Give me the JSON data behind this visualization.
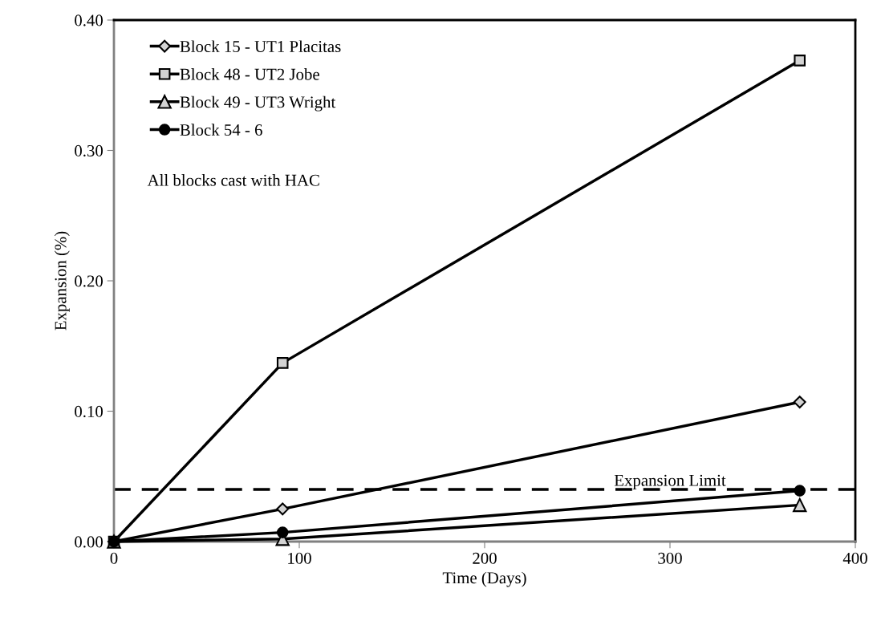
{
  "chart_data": {
    "type": "line",
    "xlabel": "Time (Days)",
    "ylabel": "Expansion (%)",
    "x": [
      0,
      91,
      370
    ],
    "series": [
      {
        "name": "Block 15 - UT1 Placitas",
        "color": "#000000",
        "marker": "diamond",
        "values": [
          0,
          0.025,
          0.107
        ]
      },
      {
        "name": "Block 48 - UT2 Jobe",
        "color": "#000000",
        "marker": "square",
        "values": [
          0,
          0.137,
          0.369
        ]
      },
      {
        "name": "Block 49 - UT3 Wright",
        "color": "#000000",
        "marker": "triangle",
        "values": [
          0,
          0.002,
          0.028
        ]
      },
      {
        "name": "Block 54 - 6",
        "color": "#000000",
        "marker": "circle",
        "values": [
          0,
          0.007,
          0.039
        ]
      }
    ],
    "xlim": [
      0,
      400
    ],
    "xticks": [
      0,
      100,
      200,
      300,
      400
    ],
    "ylim": [
      0,
      0.4
    ],
    "yticks": [
      {
        "value": 0,
        "label": "0.00"
      },
      {
        "value": 0.1,
        "label": "0.10"
      },
      {
        "value": 0.2,
        "label": "0.20"
      },
      {
        "value": 0.3,
        "label": "0.30"
      },
      {
        "value": 0.4,
        "label": "0.40"
      }
    ],
    "ref_lines": [
      {
        "axis": "y",
        "value": 0.04,
        "label": "Expansion Limit",
        "color": "#000000",
        "line_style": "dashed"
      }
    ],
    "annotations": [
      "All blocks cast with HAC"
    ],
    "legend": "top left",
    "grid": false,
    "line_style": "solid"
  }
}
